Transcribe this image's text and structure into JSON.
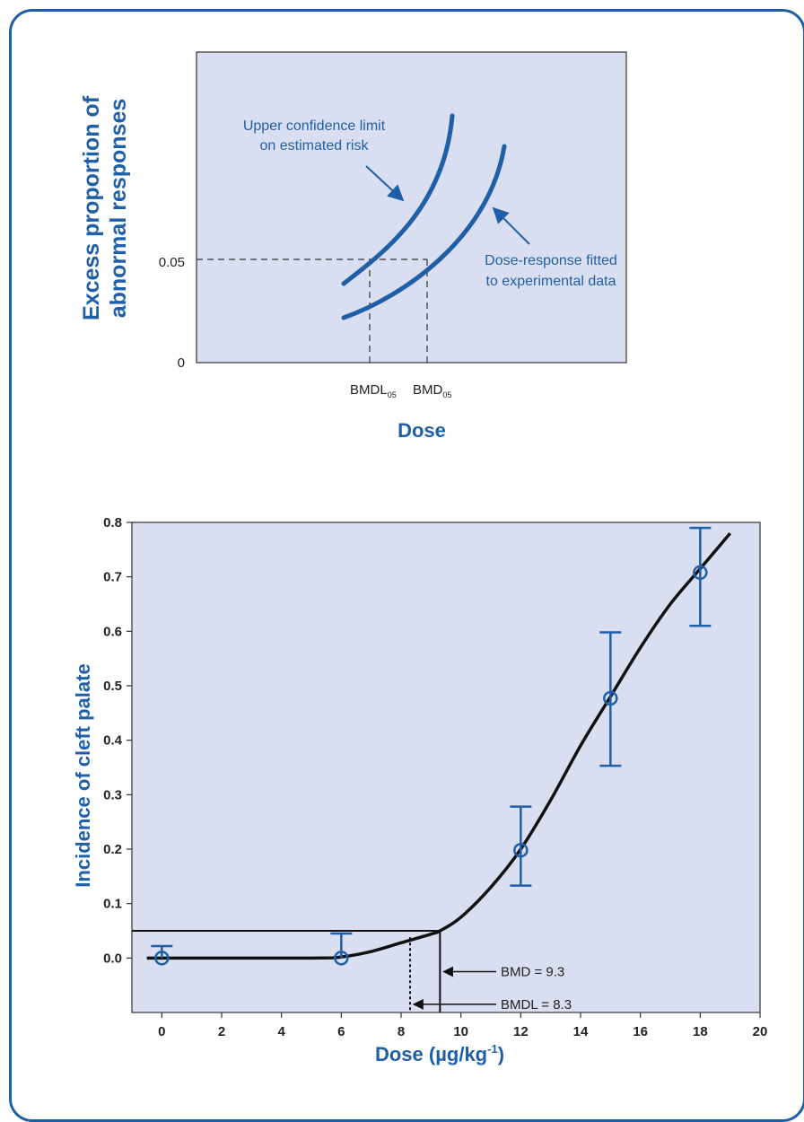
{
  "colors": {
    "panel": "#d9dff0",
    "blue": "#1f5fa8",
    "curve": "#111111"
  },
  "chart_data": [
    {
      "type": "line",
      "title": "",
      "xlabel": "Dose",
      "ylabel_line1": "Excess proportion of",
      "ylabel_line2": "abnormal responses",
      "y_ticks": [
        {
          "value": 0,
          "label": "0"
        },
        {
          "value": 0.05,
          "label": "0.05"
        }
      ],
      "x_markers": [
        {
          "name": "BMDL",
          "label_main": "BMDL",
          "label_sub": "05"
        },
        {
          "name": "BMD",
          "label_main": "BMD",
          "label_sub": "05"
        }
      ],
      "series": [
        {
          "name": "Upper confidence limit on estimated risk"
        },
        {
          "name": "Dose-response fitted to experimental data"
        }
      ],
      "annotations": [
        {
          "line1": "Upper confidence limit",
          "line2": "on estimated risk"
        },
        {
          "line1": "Dose-response fitted",
          "line2": "to experimental data"
        }
      ]
    },
    {
      "type": "line",
      "title": "",
      "ylabel": "Incidence of cleft palate",
      "xlabel_main": "Dose (µg/kg",
      "xlabel_sup": "-1",
      "xlabel_end": ")",
      "xlim": [
        -1,
        20
      ],
      "ylim": [
        -0.1,
        0.8
      ],
      "x_ticks": [
        0,
        2,
        4,
        6,
        8,
        10,
        12,
        14,
        16,
        18,
        20
      ],
      "y_ticks": [
        {
          "value": 0.0,
          "label": "0.0"
        },
        {
          "value": 0.1,
          "label": "0.1"
        },
        {
          "value": 0.2,
          "label": "0.2"
        },
        {
          "value": 0.3,
          "label": "0.3"
        },
        {
          "value": 0.4,
          "label": "0.4"
        },
        {
          "value": 0.5,
          "label": "0.5"
        },
        {
          "value": 0.6,
          "label": "0.6"
        },
        {
          "value": 0.7,
          "label": "0.7"
        },
        {
          "value": 0.8,
          "label": "0.8"
        }
      ],
      "observed": [
        {
          "x": 0,
          "y": 0.0,
          "upper": 0.022,
          "lower": 0.0
        },
        {
          "x": 6,
          "y": 0.0,
          "upper": 0.045,
          "lower": 0.0
        },
        {
          "x": 12,
          "y": 0.198,
          "upper": 0.278,
          "lower": 0.133
        },
        {
          "x": 15,
          "y": 0.477,
          "upper": 0.598,
          "lower": 0.353
        },
        {
          "x": 18,
          "y": 0.708,
          "upper": 0.79,
          "lower": 0.61
        }
      ],
      "fitted_curve": [
        [
          -0.5,
          0.0
        ],
        [
          5,
          0.0
        ],
        [
          6,
          0.002
        ],
        [
          7,
          0.012
        ],
        [
          8,
          0.028
        ],
        [
          9,
          0.044
        ],
        [
          9.3,
          0.05
        ],
        [
          10,
          0.075
        ],
        [
          11,
          0.13
        ],
        [
          12,
          0.2
        ],
        [
          13,
          0.29
        ],
        [
          14,
          0.39
        ],
        [
          15,
          0.48
        ],
        [
          16,
          0.57
        ],
        [
          17,
          0.65
        ],
        [
          18,
          0.715
        ],
        [
          19,
          0.78
        ]
      ],
      "bmr": 0.05,
      "bmd": {
        "value": 9.3,
        "label": "BMD = 9.3"
      },
      "bmdl": {
        "value": 8.3,
        "label": "BMDL = 8.3"
      }
    }
  ]
}
